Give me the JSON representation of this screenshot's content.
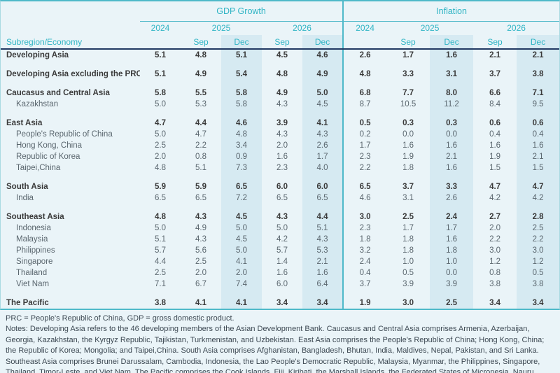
{
  "table": {
    "row_header": "Subregion/Economy",
    "sections": [
      {
        "label": "GDP Growth"
      },
      {
        "label": "Inflation"
      }
    ],
    "years": [
      "2024",
      "2025",
      "2026"
    ],
    "subcols": {
      "sep": "Sep",
      "dec": "Dec"
    },
    "groups": [
      {
        "rows": [
          {
            "name": "Developing Asia",
            "bold": true,
            "gdp": [
              "5.1",
              "4.8",
              "5.1",
              "4.5",
              "4.6"
            ],
            "inflation": [
              "2.6",
              "1.7",
              "1.6",
              "2.1",
              "2.1"
            ]
          }
        ]
      },
      {
        "rows": [
          {
            "name": "Developing Asia excluding the PRC",
            "bold": true,
            "gdp": [
              "5.1",
              "4.9",
              "5.4",
              "4.8",
              "4.9"
            ],
            "inflation": [
              "4.8",
              "3.3",
              "3.1",
              "3.7",
              "3.8"
            ]
          }
        ]
      },
      {
        "rows": [
          {
            "name": "Caucasus and Central Asia",
            "bold": true,
            "gdp": [
              "5.8",
              "5.5",
              "5.8",
              "4.9",
              "5.0"
            ],
            "inflation": [
              "6.8",
              "7.7",
              "8.0",
              "6.6",
              "7.1"
            ]
          },
          {
            "name": "Kazakhstan",
            "bold": false,
            "gdp": [
              "5.0",
              "5.3",
              "5.8",
              "4.3",
              "4.5"
            ],
            "inflation": [
              "8.7",
              "10.5",
              "11.2",
              "8.4",
              "9.5"
            ]
          }
        ]
      },
      {
        "rows": [
          {
            "name": "East Asia",
            "bold": true,
            "gdp": [
              "4.7",
              "4.4",
              "4.6",
              "3.9",
              "4.1"
            ],
            "inflation": [
              "0.5",
              "0.3",
              "0.3",
              "0.6",
              "0.6"
            ]
          },
          {
            "name": "People's Republic of China",
            "bold": false,
            "gdp": [
              "5.0",
              "4.7",
              "4.8",
              "4.3",
              "4.3"
            ],
            "inflation": [
              "0.2",
              "0.0",
              "0.0",
              "0.4",
              "0.4"
            ]
          },
          {
            "name": "Hong Kong, China",
            "bold": false,
            "gdp": [
              "2.5",
              "2.2",
              "3.4",
              "2.0",
              "2.6"
            ],
            "inflation": [
              "1.7",
              "1.6",
              "1.6",
              "1.6",
              "1.6"
            ]
          },
          {
            "name": "Republic of Korea",
            "bold": false,
            "gdp": [
              "2.0",
              "0.8",
              "0.9",
              "1.6",
              "1.7"
            ],
            "inflation": [
              "2.3",
              "1.9",
              "2.1",
              "1.9",
              "2.1"
            ]
          },
          {
            "name": "Taipei,China",
            "bold": false,
            "gdp": [
              "4.8",
              "5.1",
              "7.3",
              "2.3",
              "4.0"
            ],
            "inflation": [
              "2.2",
              "1.8",
              "1.6",
              "1.5",
              "1.5"
            ]
          }
        ]
      },
      {
        "rows": [
          {
            "name": "South Asia",
            "bold": true,
            "gdp": [
              "5.9",
              "5.9",
              "6.5",
              "6.0",
              "6.0"
            ],
            "inflation": [
              "6.5",
              "3.7",
              "3.3",
              "4.7",
              "4.7"
            ]
          },
          {
            "name": "India",
            "bold": false,
            "gdp": [
              "6.5",
              "6.5",
              "7.2",
              "6.5",
              "6.5"
            ],
            "inflation": [
              "4.6",
              "3.1",
              "2.6",
              "4.2",
              "4.2"
            ]
          }
        ]
      },
      {
        "rows": [
          {
            "name": "Southeast Asia",
            "bold": true,
            "gdp": [
              "4.8",
              "4.3",
              "4.5",
              "4.3",
              "4.4"
            ],
            "inflation": [
              "3.0",
              "2.5",
              "2.4",
              "2.7",
              "2.8"
            ]
          },
          {
            "name": "Indonesia",
            "bold": false,
            "gdp": [
              "5.0",
              "4.9",
              "5.0",
              "5.0",
              "5.1"
            ],
            "inflation": [
              "2.3",
              "1.7",
              "1.7",
              "2.0",
              "2.5"
            ]
          },
          {
            "name": "Malaysia",
            "bold": false,
            "gdp": [
              "5.1",
              "4.3",
              "4.5",
              "4.2",
              "4.3"
            ],
            "inflation": [
              "1.8",
              "1.8",
              "1.6",
              "2.2",
              "2.2"
            ]
          },
          {
            "name": "Philippines",
            "bold": false,
            "gdp": [
              "5.7",
              "5.6",
              "5.0",
              "5.7",
              "5.3"
            ],
            "inflation": [
              "3.2",
              "1.8",
              "1.8",
              "3.0",
              "3.0"
            ]
          },
          {
            "name": "Singapore",
            "bold": false,
            "gdp": [
              "4.4",
              "2.5",
              "4.1",
              "1.4",
              "2.1"
            ],
            "inflation": [
              "2.4",
              "1.0",
              "1.0",
              "1.2",
              "1.2"
            ]
          },
          {
            "name": "Thailand",
            "bold": false,
            "gdp": [
              "2.5",
              "2.0",
              "2.0",
              "1.6",
              "1.6"
            ],
            "inflation": [
              "0.4",
              "0.5",
              "0.0",
              "0.8",
              "0.5"
            ]
          },
          {
            "name": "Viet Nam",
            "bold": false,
            "gdp": [
              "7.1",
              "6.7",
              "7.4",
              "6.0",
              "6.4"
            ],
            "inflation": [
              "3.7",
              "3.9",
              "3.9",
              "3.8",
              "3.8"
            ]
          }
        ]
      },
      {
        "rows": [
          {
            "name": "The Pacific",
            "bold": true,
            "gdp": [
              "3.8",
              "4.1",
              "4.1",
              "3.4",
              "3.4"
            ],
            "inflation": [
              "1.9",
              "3.0",
              "2.5",
              "3.4",
              "3.4"
            ]
          }
        ]
      }
    ]
  },
  "footer": {
    "abbreviations": "PRC = People's Republic of China, GDP = gross domestic product.",
    "notes": "Notes: Developing Asia refers to the 46 developing members of the Asian Development Bank. Caucasus and Central Asia comprises Armenia, Azerbaijan, Georgia, Kazakhstan, the Kyrgyz Republic, Tajikistan, Turkmenistan, and Uzbekistan. East Asia comprises the People's Republic of China; Hong Kong, China; the Republic of Korea; Mongolia; and Taipei,China. South Asia comprises Afghanistan, Bangladesh, Bhutan, India, Maldives, Nepal, Pakistan, and Sri Lanka. Southeast Asia comprises Brunei Darussalam, Cambodia, Indonesia, the Lao People's Democratic Republic, Malaysia, Myanmar, the Philippines, Singapore, Thailand, Timor-Leste, and Viet Nam. The Pacific comprises the Cook Islands, Fiji, Kiribati, the Marshall Islands, the Federated States of Micronesia, Nauru, Niue, Palau, Papua New Guinea, Samoa, Solomon Islands, Tonga,"
  },
  "colors": {
    "base_bg": "#eaf4f8",
    "band_bg": "#d6eaf2",
    "teal_accent": "#2fb4c4",
    "teal_line": "#4fb9c9",
    "navy_line": "#223a63",
    "bold_text": "#3a3a3a",
    "member_text": "#5a666e"
  }
}
